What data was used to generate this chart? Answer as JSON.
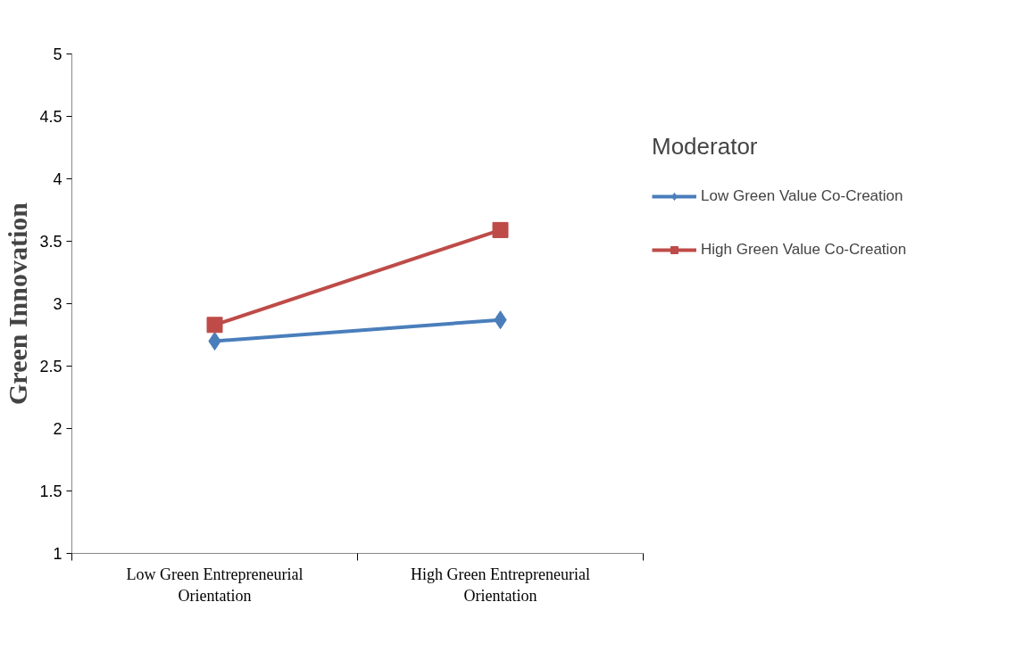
{
  "chart_data": {
    "type": "line",
    "ylabel": "Green Innovation",
    "legend_title": "Moderator",
    "categories": [
      "Low Green Entrepreneurial Orientation",
      "High Green Entrepreneurial Orientation"
    ],
    "series": [
      {
        "name": "Low Green Value Co-Creation",
        "color": "#4a7ebb",
        "marker": "diamond",
        "values": [
          2.7,
          2.87
        ]
      },
      {
        "name": "High Green Value Co-Creation",
        "color": "#be4b48",
        "marker": "square",
        "values": [
          2.83,
          3.59
        ]
      }
    ],
    "ylim": [
      1,
      5
    ],
    "yticks": [
      1,
      1.5,
      2,
      2.5,
      3,
      3.5,
      4,
      4.5,
      5
    ],
    "grid": false,
    "legend": "right",
    "line_style": "solid"
  }
}
